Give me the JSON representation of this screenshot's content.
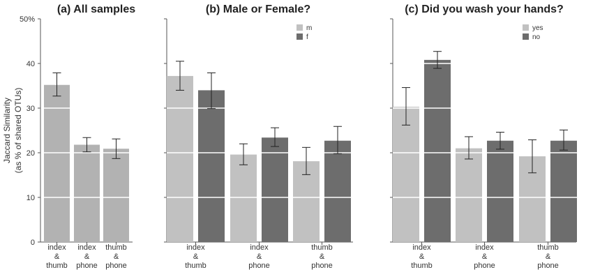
{
  "chart_data": [
    {
      "type": "bar",
      "title": "(a) All samples",
      "ylabel": [
        "Jaccard Similarity",
        "(as % of shared OTUs)"
      ],
      "yticks": [
        "0",
        "10",
        "20",
        "30",
        "40",
        "50%"
      ],
      "ylim": [
        0,
        50
      ],
      "grid": "white horizontal lines over bars",
      "categories": [
        [
          "index",
          "&",
          "thumb"
        ],
        [
          "index",
          "&",
          "phone"
        ],
        [
          "thumb",
          "&",
          "phone"
        ]
      ],
      "series": [
        {
          "color": "#b2b2b2",
          "values": [
            35.2,
            21.8,
            20.9
          ],
          "err_low": [
            32.7,
            20.2,
            18.7
          ],
          "err_high": [
            37.9,
            23.4,
            23.1
          ]
        }
      ]
    },
    {
      "type": "bar",
      "title": "(b) Male or Female?",
      "ylim": [
        0,
        50
      ],
      "legend": "top-right",
      "categories": [
        [
          "index",
          "&",
          "thumb"
        ],
        [
          "index",
          "&",
          "phone"
        ],
        [
          "thumb",
          "&",
          "phone"
        ]
      ],
      "series": [
        {
          "name": "m",
          "color": "#c1c1c1",
          "values": [
            37.2,
            19.6,
            18.1
          ],
          "err_low": [
            34.0,
            17.3,
            15.1
          ],
          "err_high": [
            40.5,
            22.0,
            21.2
          ]
        },
        {
          "name": "f",
          "color": "#6d6d6d",
          "values": [
            34.0,
            23.4,
            22.7
          ],
          "err_low": [
            29.9,
            21.4,
            19.8
          ],
          "err_high": [
            37.9,
            25.6,
            25.9
          ]
        }
      ]
    },
    {
      "type": "bar",
      "title": "(c) Did you wash your hands?",
      "ylim": [
        0,
        50
      ],
      "legend": "top-right",
      "categories": [
        [
          "index",
          "&",
          "thumb"
        ],
        [
          "index",
          "&",
          "phone"
        ],
        [
          "thumb",
          "&",
          "phone"
        ]
      ],
      "series": [
        {
          "name": "yes",
          "color": "#c1c1c1",
          "values": [
            30.3,
            21.0,
            19.2
          ],
          "err_low": [
            26.2,
            18.6,
            15.5
          ],
          "err_high": [
            34.6,
            23.6,
            22.9
          ]
        },
        {
          "name": "no",
          "color": "#6d6d6d",
          "values": [
            40.8,
            22.7,
            22.7
          ],
          "err_low": [
            38.9,
            20.8,
            20.6
          ],
          "err_high": [
            42.7,
            24.6,
            25.1
          ]
        }
      ]
    }
  ]
}
